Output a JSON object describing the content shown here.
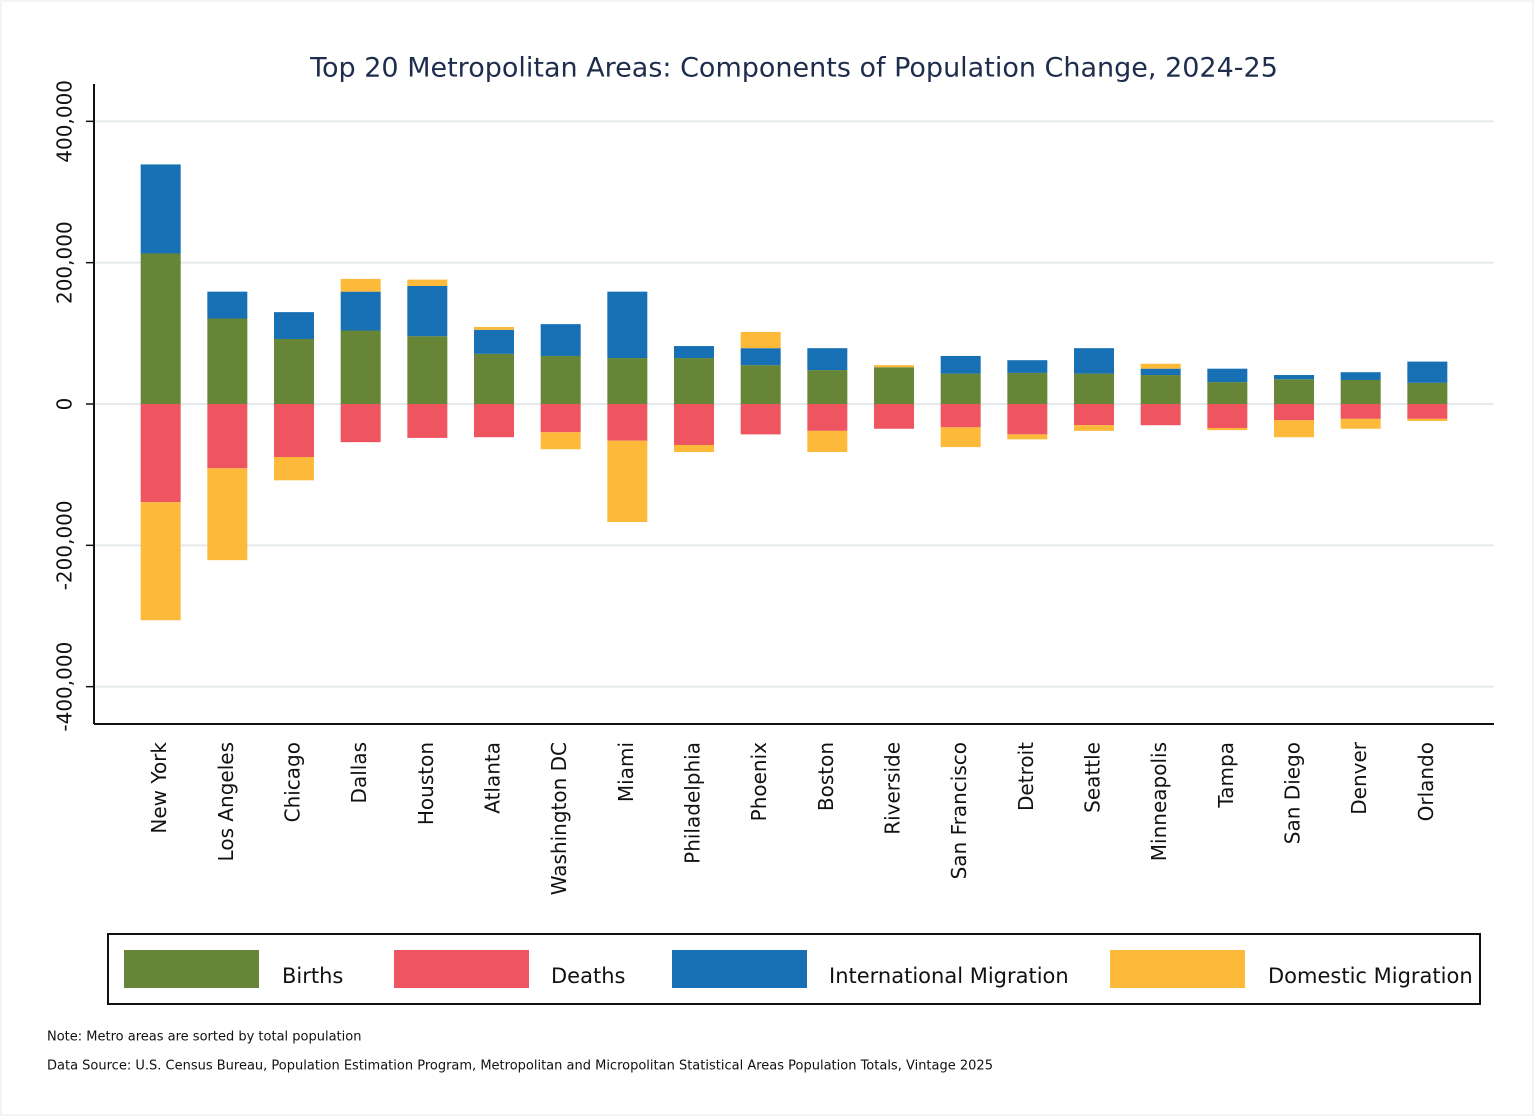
{
  "chart_data": {
    "type": "stacked_bar",
    "title": "Top 20 Metropolitan Areas: Components of Population Change, 2024-25",
    "categories": [
      "New York",
      "Los Angeles",
      "Chicago",
      "Dallas",
      "Houston",
      "Atlanta",
      "Washington DC",
      "Miami",
      "Philadelphia",
      "Phoenix",
      "Boston",
      "Riverside",
      "San Francisco",
      "Detroit",
      "Seattle",
      "Minneapolis",
      "Tampa",
      "San Diego",
      "Denver",
      "Orlando"
    ],
    "series": [
      {
        "name": "Births",
        "color": "#668536",
        "values": [
          213000,
          121000,
          92000,
          104000,
          96000,
          71000,
          68000,
          65000,
          65000,
          55000,
          48000,
          52000,
          43000,
          44000,
          43000,
          41000,
          31000,
          35000,
          34000,
          30000
        ]
      },
      {
        "name": "Deaths",
        "color": "#ee5560",
        "values": [
          -139000,
          -91000,
          -75000,
          -54000,
          -48000,
          -47000,
          -40000,
          -52000,
          -58000,
          -43000,
          -38000,
          -35000,
          -33000,
          -43000,
          -30000,
          -30000,
          -34000,
          -23000,
          -21000,
          -21000
        ]
      },
      {
        "name": "International Migration",
        "color": "#1770b3",
        "values": [
          126000,
          38000,
          38000,
          55000,
          71000,
          34000,
          45000,
          94000,
          17000,
          24000,
          31000,
          0,
          25000,
          18000,
          36000,
          9000,
          19000,
          6000,
          11000,
          30000
        ]
      },
      {
        "name": "Domestic Migration",
        "color": "#fdb939",
        "values": [
          -167000,
          -130000,
          -33000,
          18000,
          9000,
          4000,
          -24000,
          -115000,
          -10000,
          23000,
          -30000,
          3000,
          -28000,
          -7000,
          -8000,
          7000,
          -3000,
          -24000,
          -14000,
          -3000
        ]
      }
    ],
    "ylim": [
      -450000,
      450000
    ],
    "yticks": [
      {
        "value": -400000,
        "label": "-400,000"
      },
      {
        "value": -200000,
        "label": "-200,000"
      },
      0,
      {
        "value": 200000,
        "label": "200,000"
      },
      {
        "value": 400000,
        "label": "400,000"
      }
    ],
    "grid": true,
    "legend": "bottom",
    "note": "Note: Metro areas are sorted by total population",
    "source": "Data Source: U.S. Census Bureau, Population Estimation Program, Metropolitan and Micropolitan Statistical Areas Population Totals, Vintage 2025"
  }
}
